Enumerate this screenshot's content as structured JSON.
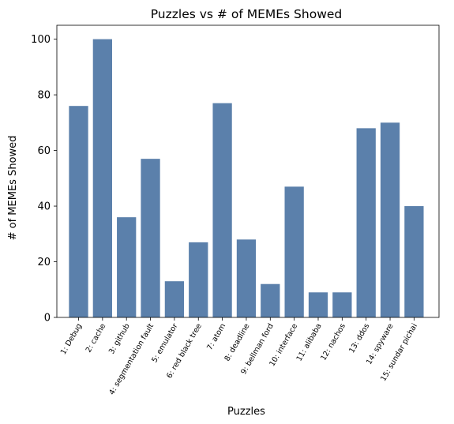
{
  "chart_data": {
    "type": "bar",
    "title": "Puzzles vs # of MEMEs Showed",
    "xlabel": "Puzzles",
    "ylabel": "# of MEMEs Showed",
    "categories": [
      "1: Debug",
      "2: cache",
      "3: github",
      "4: segmentation fault",
      "5: emulator",
      "6: red black tree",
      "7: atom",
      "8: deadline",
      "9: bellman ford",
      "10: interface",
      "11: alibaba",
      "12: nachos",
      "13: ddos",
      "14: spyware",
      "15: sundar pichai"
    ],
    "values": [
      76,
      100,
      36,
      57,
      13,
      27,
      77,
      28,
      12,
      47,
      9,
      9,
      68,
      70,
      40
    ],
    "ylim": [
      0,
      105
    ],
    "yticks": [
      0,
      20,
      40,
      60,
      80,
      100
    ],
    "bar_color": "#5b80ab",
    "grid": false,
    "legend": "none"
  }
}
